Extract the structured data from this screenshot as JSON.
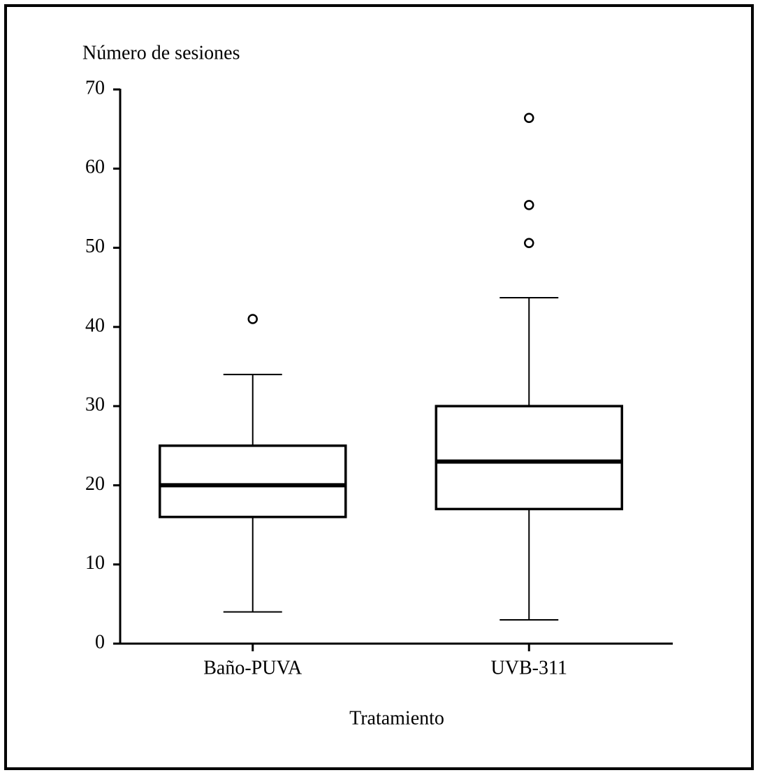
{
  "chart_data": {
    "type": "box",
    "y_label": "Número de sesiones",
    "x_label": "Tratamiento",
    "categories": [
      "Baño-PUVA",
      "UVB-311"
    ],
    "boxes": [
      {
        "min": 4,
        "q1": 16,
        "median": 20,
        "q3": 25,
        "max": 34,
        "outliers": [
          41
        ]
      },
      {
        "min": 3,
        "q1": 17,
        "median": 23,
        "q3": 30,
        "max": 43.7,
        "outliers": [
          50.6,
          55.4,
          66.4
        ]
      }
    ],
    "ylim": [
      0,
      70
    ],
    "yticks": [
      0,
      10,
      20,
      30,
      40,
      50,
      60,
      70
    ]
  }
}
